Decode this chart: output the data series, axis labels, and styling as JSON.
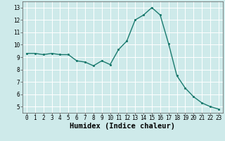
{
  "x": [
    0,
    1,
    2,
    3,
    4,
    5,
    6,
    7,
    8,
    9,
    10,
    11,
    12,
    13,
    14,
    15,
    16,
    17,
    18,
    19,
    20,
    21,
    22,
    23
  ],
  "y": [
    9.3,
    9.3,
    9.2,
    9.3,
    9.2,
    9.2,
    8.7,
    8.6,
    8.3,
    8.7,
    8.4,
    9.6,
    10.3,
    12.0,
    12.4,
    13.0,
    12.4,
    10.1,
    7.5,
    6.5,
    5.8,
    5.3,
    5.0,
    4.8
  ],
  "line_color": "#1a7a6e",
  "marker_color": "#1a7a6e",
  "bg_color": "#ceeaea",
  "grid_color": "#ffffff",
  "xlabel": "Humidex (Indice chaleur)",
  "xlim": [
    -0.5,
    23.5
  ],
  "ylim": [
    4.5,
    13.5
  ],
  "yticks": [
    5,
    6,
    7,
    8,
    9,
    10,
    11,
    12,
    13
  ],
  "xticks": [
    0,
    1,
    2,
    3,
    4,
    5,
    6,
    7,
    8,
    9,
    10,
    11,
    12,
    13,
    14,
    15,
    16,
    17,
    18,
    19,
    20,
    21,
    22,
    23
  ],
  "tick_fontsize": 5.5,
  "xlabel_fontsize": 7.5,
  "marker_size": 2.5,
  "line_width": 1.0
}
